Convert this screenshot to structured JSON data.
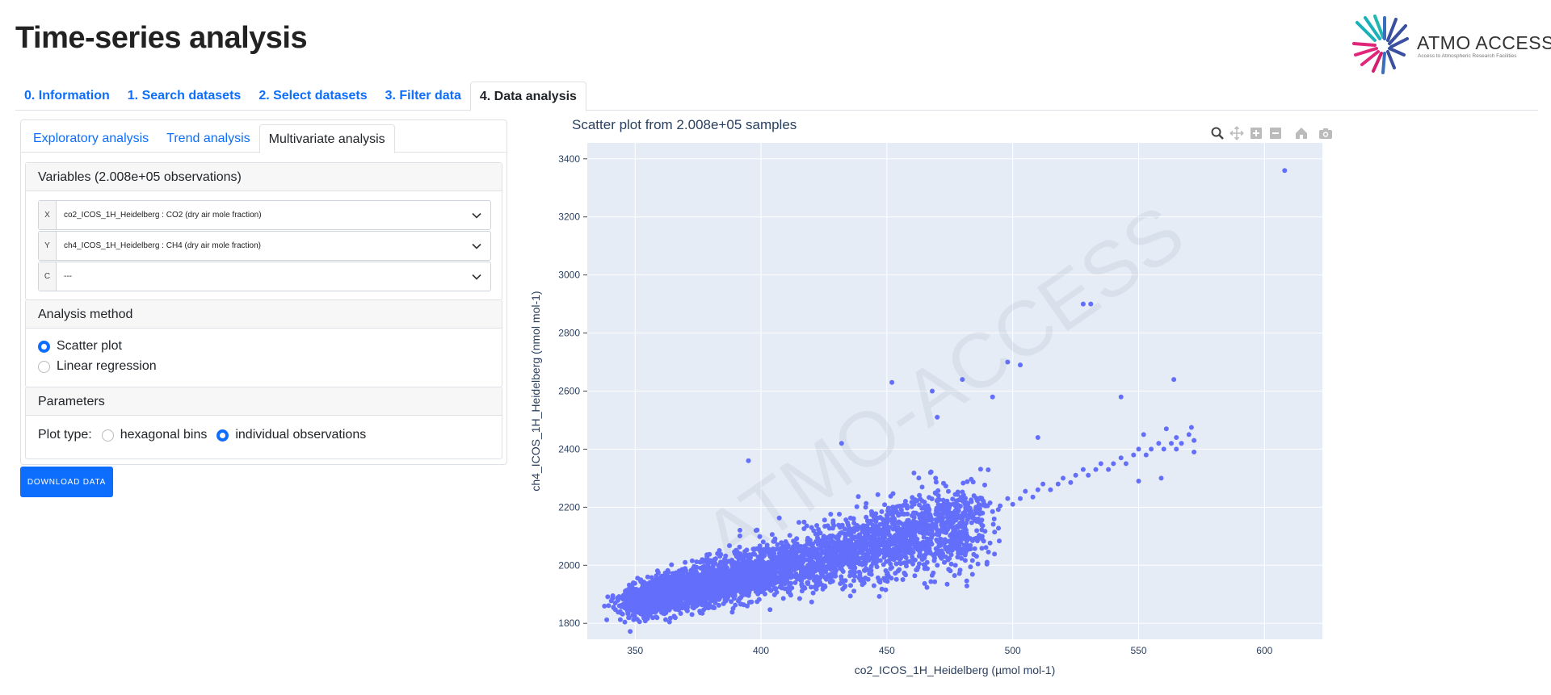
{
  "page": {
    "title": "Time-series analysis"
  },
  "logo": {
    "name": "ATMO ACCESS",
    "tagline": "Access to Atmospheric Research Facilities"
  },
  "top_tabs": [
    {
      "label": "0. Information",
      "active": false
    },
    {
      "label": "1. Search datasets",
      "active": false
    },
    {
      "label": "2. Select datasets",
      "active": false
    },
    {
      "label": "3. Filter data",
      "active": false
    },
    {
      "label": "4. Data analysis",
      "active": true
    }
  ],
  "sub_tabs": [
    {
      "label": "Exploratory analysis",
      "active": false
    },
    {
      "label": "Trend analysis",
      "active": false
    },
    {
      "label": "Multivariate analysis",
      "active": true
    }
  ],
  "variables": {
    "header": "Variables (2.008e+05 observations)",
    "x": {
      "axis": "X",
      "value": "co2_ICOS_1H_Heidelberg : CO2 (dry air mole fraction)"
    },
    "y": {
      "axis": "Y",
      "value": "ch4_ICOS_1H_Heidelberg : CH4 (dry air mole fraction)"
    },
    "c": {
      "axis": "C",
      "value": "---"
    }
  },
  "analysis_method": {
    "header": "Analysis method",
    "options": [
      {
        "label": "Scatter plot",
        "checked": true
      },
      {
        "label": "Linear regression",
        "checked": false
      }
    ]
  },
  "parameters": {
    "header": "Parameters",
    "plot_type_label": "Plot type:",
    "options": [
      {
        "label": "hexagonal bins",
        "checked": false
      },
      {
        "label": "individual observations",
        "checked": true
      }
    ]
  },
  "download_button": "DOWNLOAD DATA",
  "modebar_icons": [
    "zoom-icon",
    "pan-icon",
    "zoom-in-icon",
    "zoom-out-icon",
    "reset-axes-icon",
    "camera-icon"
  ],
  "chart_data": {
    "type": "scatter",
    "title": "Scatter plot from 2.008e+05 samples",
    "xlabel": "co2_ICOS_1H_Heidelberg (µmol mol-1)",
    "ylabel": "ch4_ICOS_1H_Heidelberg (nmol mol-1)",
    "xlim": [
      331,
      623
    ],
    "ylim": [
      1745,
      3455
    ],
    "x_ticks": [
      350,
      400,
      450,
      500,
      550,
      600
    ],
    "y_ticks": [
      1800,
      2000,
      2200,
      2400,
      2600,
      2800,
      3000,
      3200,
      3400
    ],
    "grid": true,
    "marker_color": "#636efa",
    "plot_bg": "#e5ecf6",
    "watermark": "ATMO-ACCESS",
    "series": [
      {
        "values_note": "dense cloud; representative points",
        "x": [
          347,
          349,
          352,
          355,
          358,
          360,
          363,
          365,
          368,
          370,
          372,
          375,
          378,
          380,
          383,
          385,
          388,
          390,
          392,
          395,
          398,
          400,
          403,
          405,
          408,
          410,
          412,
          415,
          418,
          420,
          423,
          425,
          428,
          430,
          432,
          435,
          438,
          440,
          443,
          445,
          448,
          450,
          453,
          455,
          458,
          460,
          462,
          465,
          468,
          470,
          472,
          475,
          478,
          480,
          483,
          485,
          488,
          490,
          492,
          495,
          498,
          500,
          503,
          505,
          508,
          510,
          512,
          515,
          518,
          520,
          523,
          525,
          528,
          530,
          533,
          535,
          538,
          540,
          543,
          545,
          548,
          550,
          553,
          555,
          558,
          560,
          563,
          565,
          567,
          570,
          572,
          452,
          468,
          480,
          492,
          498,
          503,
          528,
          531,
          543,
          550,
          552,
          559,
          561,
          564,
          565,
          571,
          572,
          608,
          395,
          432,
          470,
          510
        ],
        "y": [
          1910,
          1880,
          1900,
          1870,
          1890,
          1900,
          1910,
          1885,
          1900,
          1920,
          1895,
          1910,
          1930,
          1905,
          1925,
          1940,
          1915,
          1935,
          1950,
          1930,
          1950,
          1965,
          1945,
          1965,
          1980,
          1960,
          1980,
          1995,
          1975,
          1995,
          2010,
          1990,
          2010,
          2025,
          2005,
          2030,
          2045,
          2025,
          2045,
          2065,
          2045,
          2065,
          2085,
          2065,
          2085,
          2110,
          2090,
          2110,
          2130,
          2110,
          2130,
          2155,
          2135,
          2155,
          2180,
          2160,
          2180,
          2205,
          2185,
          2205,
          2230,
          2210,
          2230,
          2255,
          2235,
          2260,
          2280,
          2260,
          2280,
          2300,
          2285,
          2310,
          2330,
          2310,
          2330,
          2350,
          2330,
          2350,
          2370,
          2350,
          2380,
          2400,
          2380,
          2400,
          2420,
          2400,
          2420,
          2440,
          2420,
          2450,
          2430,
          2630,
          2600,
          2640,
          2580,
          2700,
          2690,
          2900,
          2900,
          2580,
          2290,
          2450,
          2300,
          2470,
          2640,
          2400,
          2475,
          2390,
          3360,
          2360,
          2420,
          2510,
          2440
        ]
      }
    ]
  }
}
